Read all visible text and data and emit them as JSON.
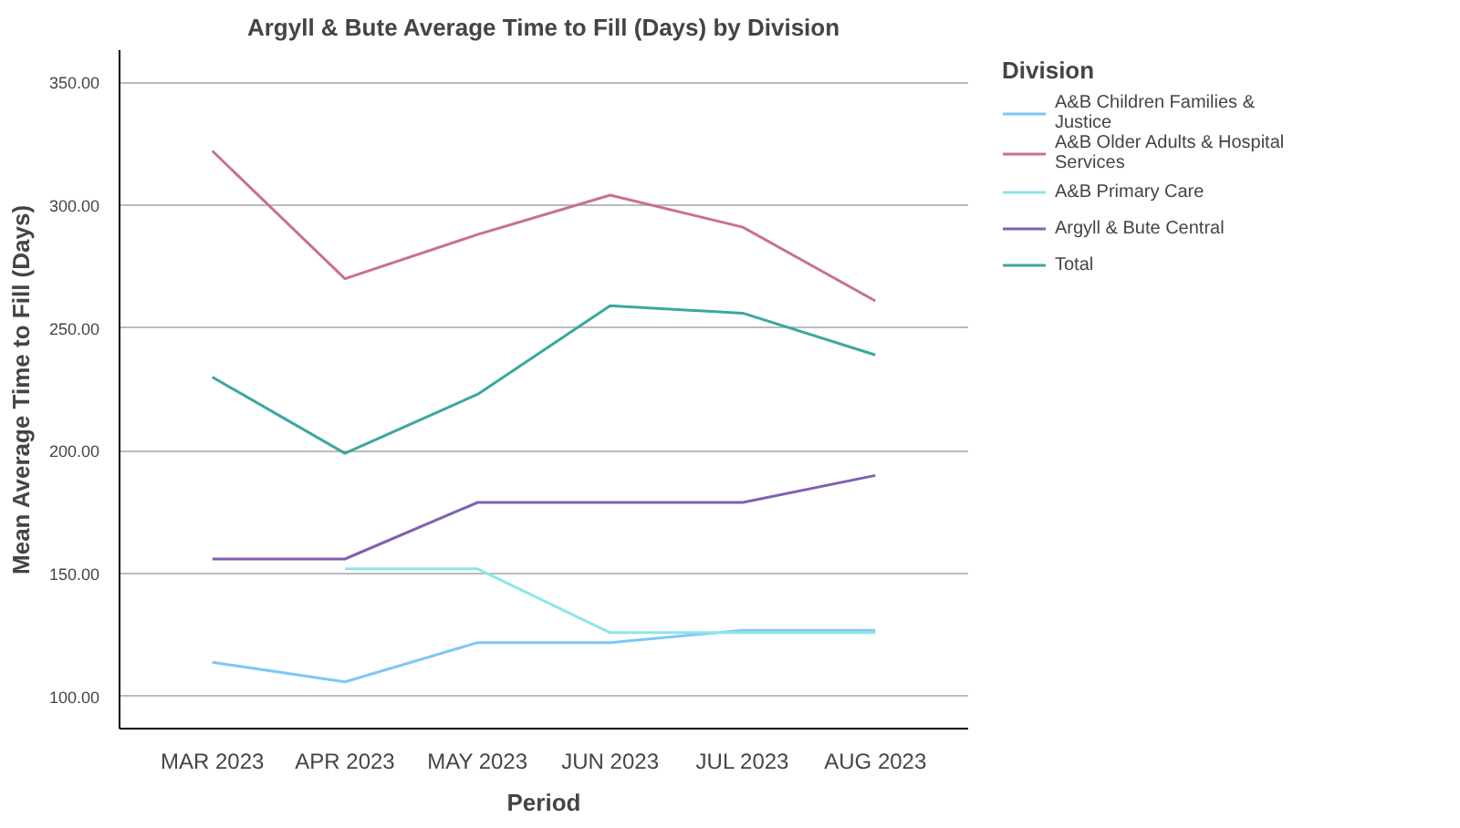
{
  "chart_data": {
    "type": "line",
    "title": "Argyll & Bute Average Time to Fill (Days) by Division",
    "xlabel": "Period",
    "ylabel": "Mean Average Time to Fill (Days)",
    "legend_title": "Division",
    "categories": [
      "MAR 2023",
      "APR 2023",
      "MAY 2023",
      "JUN 2023",
      "JUL 2023",
      "AUG 2023"
    ],
    "series": [
      {
        "name": "A&B Children Families & Justice",
        "color": "#7ec8f5",
        "values": [
          114,
          106,
          122,
          122,
          127,
          127
        ]
      },
      {
        "name": "A&B Older Adults & Hospital Services",
        "color": "#c9728a",
        "values": [
          322,
          270,
          288,
          304,
          291,
          261
        ]
      },
      {
        "name": "A&B Primary Care",
        "color": "#8ee6e6",
        "values": [
          null,
          152,
          152,
          126,
          126,
          126
        ]
      },
      {
        "name": "Argyll & Bute Central",
        "color": "#8060b0",
        "values": [
          156,
          156,
          179,
          179,
          179,
          190
        ]
      },
      {
        "name": "Total",
        "color": "#3aa8a0",
        "values": [
          230,
          199,
          223,
          259,
          256,
          239
        ]
      }
    ],
    "ylim": [
      87,
      363
    ],
    "yticks": [
      {
        "value": 100,
        "label": "100.00"
      },
      {
        "value": 150,
        "label": "150.00"
      },
      {
        "value": 200,
        "label": "200.00"
      },
      {
        "value": 250,
        "label": "250.00"
      },
      {
        "value": 300,
        "label": "300.00"
      },
      {
        "value": 350,
        "label": "350.00"
      }
    ],
    "grid": "y",
    "legend": "right"
  }
}
